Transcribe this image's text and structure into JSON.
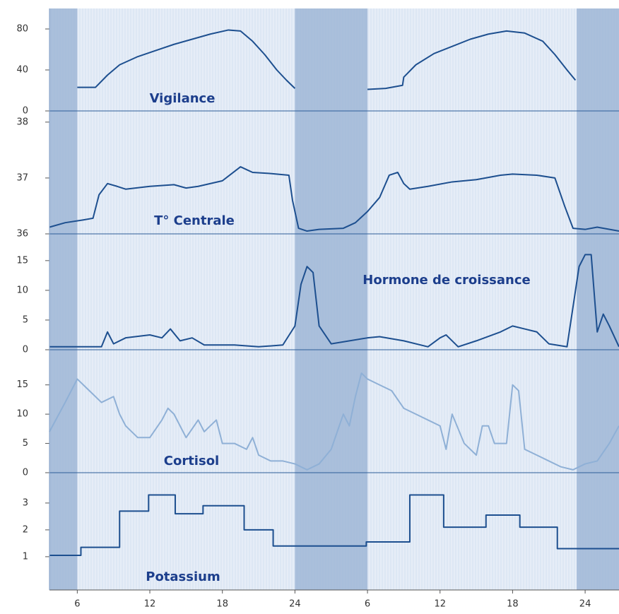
{
  "chart_data": [
    {
      "type": "line",
      "title": "Vigilance",
      "color": "#1d4f8f",
      "xlim": [
        3.7,
        50.8
      ],
      "ylim": [
        0,
        100
      ],
      "yticks": [
        0,
        40,
        80
      ],
      "x": [
        6,
        7.5,
        8.5,
        9.5,
        11,
        12.5,
        14,
        15.5,
        17,
        18.5,
        19.5,
        20.5,
        21.5,
        22.5,
        23.3,
        24,
        27,
        30,
        31.5,
        32.9,
        33,
        34,
        35.5,
        37,
        38.5,
        40,
        41.5,
        43,
        44.5,
        45.5,
        46.5,
        47.2
      ],
      "values": [
        23,
        23,
        35,
        45,
        53,
        59,
        65,
        70,
        75,
        79,
        78,
        68,
        55,
        40,
        30,
        22,
        null,
        21,
        22,
        25,
        33,
        45,
        56,
        63,
        70,
        75,
        78,
        76,
        68,
        55,
        40,
        30
      ]
    },
    {
      "type": "line",
      "title": "T° Centrale",
      "color": "#1d4f8f",
      "xlim": [
        3.7,
        50.8
      ],
      "ylim": [
        36,
        38.2
      ],
      "yticks": [
        36,
        37,
        38
      ],
      "x": [
        3.7,
        5,
        6.5,
        7.3,
        7.8,
        8.5,
        9.3,
        10,
        12,
        14,
        15,
        16,
        18,
        19.5,
        20,
        20.5,
        22,
        23.5,
        23.8,
        24.3,
        25,
        26,
        28,
        29,
        30,
        31,
        31.8,
        32.5,
        33,
        33.5,
        35,
        37,
        39,
        41,
        42,
        44,
        45.5,
        46.3,
        47,
        48,
        49,
        50.8
      ],
      "values": [
        36.12,
        36.2,
        36.25,
        36.28,
        36.7,
        36.9,
        36.85,
        36.8,
        36.85,
        36.88,
        36.82,
        36.85,
        36.95,
        37.2,
        37.15,
        37.1,
        37.08,
        37.05,
        36.6,
        36.1,
        36.05,
        36.08,
        36.1,
        36.2,
        36.4,
        36.65,
        37.05,
        37.1,
        36.9,
        36.8,
        36.85,
        36.93,
        36.97,
        37.05,
        37.07,
        37.05,
        37.0,
        36.5,
        36.1,
        36.08,
        36.12,
        36.05
      ]
    },
    {
      "type": "line",
      "title": "Hormone de croissance",
      "color": "#1d4f8f",
      "xlim": [
        3.7,
        50.8
      ],
      "ylim": [
        0,
        19.5
      ],
      "yticks": [
        0,
        5,
        10,
        15
      ],
      "x": [
        3.7,
        8,
        8.5,
        9,
        10,
        12,
        13,
        13.7,
        14.5,
        15.5,
        16.5,
        19,
        21,
        23,
        24,
        24.5,
        25,
        25.5,
        26,
        27,
        30,
        31,
        33,
        35,
        36,
        36.5,
        37.5,
        39,
        41,
        42,
        43,
        44,
        45,
        46.5,
        47.5,
        48,
        48.5,
        49,
        49.5,
        50,
        50.8
      ],
      "values": [
        0.5,
        0.5,
        3,
        1,
        2,
        2.5,
        2,
        3.5,
        1.5,
        2,
        0.8,
        0.8,
        0.5,
        0.8,
        4,
        11,
        14,
        13,
        4,
        1,
        2,
        2.2,
        1.5,
        0.5,
        2,
        2.5,
        0.5,
        1.5,
        3,
        4,
        3.5,
        3,
        1,
        0.5,
        14,
        16,
        16,
        3,
        6,
        4,
        0.5
      ]
    },
    {
      "type": "line",
      "title": "Cortisol",
      "color": "#8fb0d6",
      "xlim": [
        3.7,
        50.8
      ],
      "ylim": [
        0,
        21
      ],
      "yticks": [
        0,
        5,
        10,
        15
      ],
      "x": [
        3.7,
        5,
        6,
        7,
        8,
        9,
        9.5,
        10,
        11,
        12,
        13,
        13.5,
        14,
        15,
        16,
        16.5,
        17,
        17.5,
        18,
        19,
        20,
        20.5,
        21,
        22,
        23,
        24,
        25,
        26,
        27,
        28,
        28.5,
        29,
        29.5,
        30,
        31,
        32,
        33,
        34,
        35,
        36,
        36.5,
        37,
        38,
        39,
        39.5,
        40,
        40.5,
        41.5,
        42,
        42.5,
        43,
        44,
        45,
        46,
        47,
        48,
        49,
        50,
        50.8
      ],
      "values": [
        7,
        12,
        16,
        14,
        12,
        13,
        10,
        8,
        6,
        6,
        9,
        11,
        10,
        6,
        9,
        7,
        8,
        9,
        5,
        5,
        4,
        6,
        3,
        2,
        2,
        1.5,
        0.5,
        1.5,
        4,
        10,
        8,
        13,
        17,
        16,
        15,
        14,
        11,
        10,
        9,
        8,
        4,
        10,
        5,
        3,
        8,
        8,
        5,
        5,
        15,
        14,
        4,
        3,
        2,
        1,
        0.5,
        1.5,
        2,
        5,
        8
      ]
    },
    {
      "type": "line",
      "step": true,
      "title": "Potassium",
      "color": "#1d4f8f",
      "xlim": [
        3.7,
        50.8
      ],
      "ylim": [
        -0.24,
        4.13
      ],
      "yticks": [
        1,
        2,
        3
      ],
      "x": [
        3.7,
        6.3,
        9.5,
        11.9,
        14.1,
        16.4,
        19.8,
        22.2,
        29.9,
        33.5,
        36.3,
        39.8,
        42.6,
        45.7,
        50.8
      ],
      "values": [
        1.05,
        1.35,
        2.7,
        3.3,
        2.6,
        2.9,
        2.0,
        1.4,
        1.55,
        3.3,
        2.1,
        2.55,
        2.1,
        1.3,
        1.3
      ],
      "bands": [
        [
          3.7,
          6
        ],
        [
          24,
          30
        ],
        [
          47.3,
          50.8
        ]
      ],
      "xticks": [
        6,
        12,
        18,
        24,
        {
          "value": 30,
          "label": "6"
        },
        {
          "value": 36,
          "label": "12"
        },
        {
          "value": 42,
          "label": "18"
        },
        {
          "value": 48,
          "label": "24"
        }
      ]
    }
  ]
}
